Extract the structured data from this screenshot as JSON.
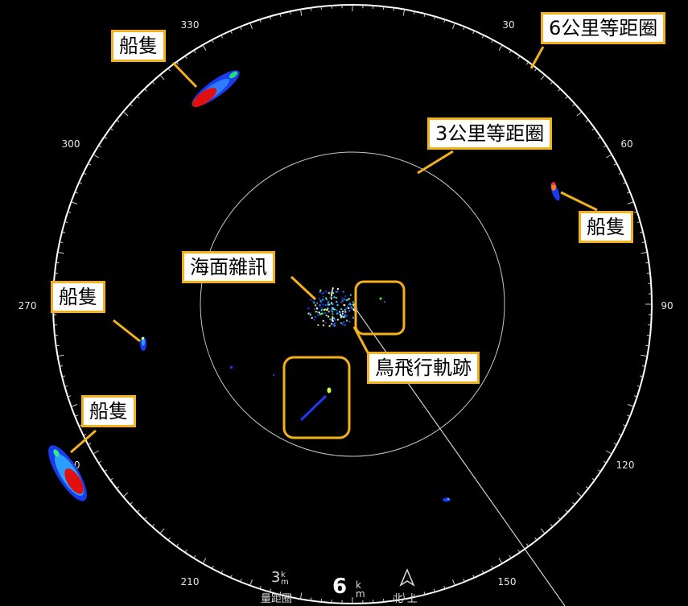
{
  "callouts": {
    "ring_6km": "6公里等距圈",
    "ring_3km": "3公里等距圈",
    "ship_top_left": "船隻",
    "ship_right": "船隻",
    "ship_left": "船隻",
    "ship_bottom_left": "船隻",
    "sea_clutter": "海面雜訊",
    "bird_track": "鳥飛行軌跡"
  },
  "bearings": [
    "330",
    "30",
    "300",
    "60",
    "270",
    "90",
    "240",
    "120",
    "210",
    "150"
  ],
  "hud": {
    "ring_spacing_value": "3",
    "ring_spacing_unit_top": "k",
    "ring_spacing_unit_bottom": "m",
    "ring_spacing_label": "量距圈",
    "range_value": "6",
    "range_unit_top": "k",
    "range_unit_bottom": "m",
    "orientation_label": "北-上"
  },
  "colors": {
    "background": "#000000",
    "ring": "#ffffff",
    "callout_border": "#f3b21a",
    "ship_echo_core": "#e01010",
    "ship_echo_edge": "#1030e0"
  }
}
